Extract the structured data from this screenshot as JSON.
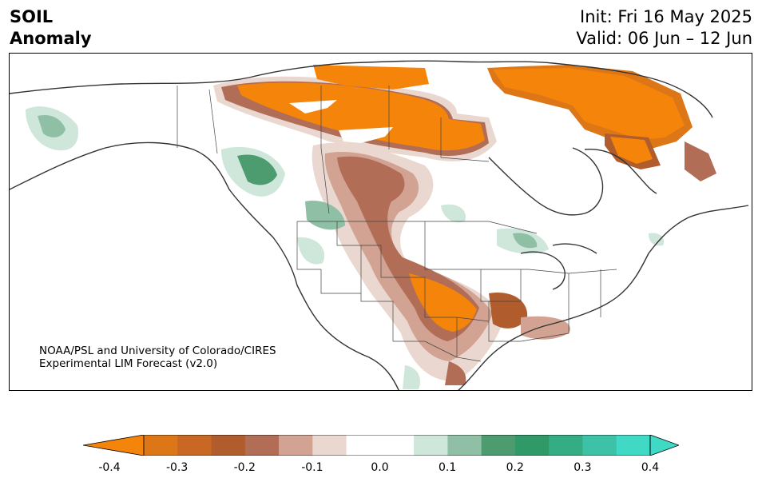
{
  "header": {
    "variable": "SOIL",
    "field": "Anomaly",
    "init": "Init: Fri 16 May 2025",
    "valid": "Valid: 06 Jun – 12 Jun"
  },
  "credit": {
    "line1": "NOAA/PSL and University of Colorado/CIRES",
    "line2": "Experimental LIM Forecast (v2.0)"
  },
  "colorbar": {
    "levels": [
      -0.4,
      -0.35,
      -0.3,
      -0.25,
      -0.2,
      -0.15,
      -0.1,
      -0.05,
      0.05,
      0.1,
      0.15,
      0.2,
      0.25,
      0.3,
      0.35,
      0.4
    ],
    "colors": [
      "#f5850a",
      "#dc7616",
      "#c96822",
      "#b05c2c",
      "#b16d55",
      "#d2a392",
      "#ead8d0",
      "#ffffff",
      "#cfe6da",
      "#8fc0a6",
      "#4c9c70",
      "#2f9a68",
      "#34ad85",
      "#3dc2a8",
      "#40d9c6"
    ],
    "extend_low_color": "#f5850a",
    "extend_high_color": "#40d9c6",
    "tick_labels": [
      "-0.4",
      "-0.3",
      "-0.2",
      "-0.1",
      "0.0",
      "0.1",
      "0.2",
      "0.3",
      "0.4"
    ]
  },
  "map": {
    "region": "North America",
    "anomaly_color_dry": "#f5850a",
    "anomaly_color_wet": "#3dbb8f"
  }
}
